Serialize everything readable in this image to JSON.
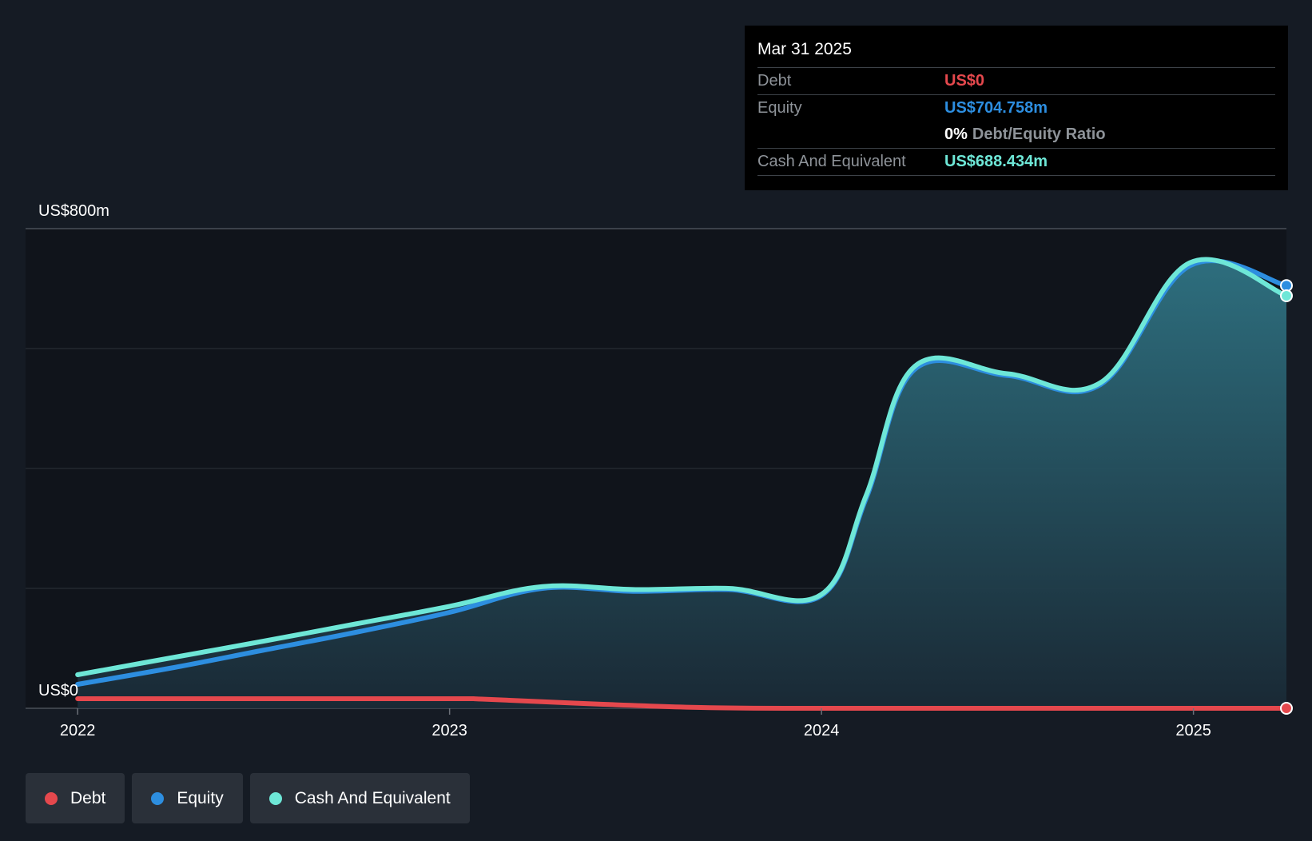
{
  "chart_data": {
    "type": "area",
    "y_axis": {
      "labels": [
        "US$800m",
        "US$0"
      ],
      "ylim": [
        0,
        800
      ],
      "gridlines": [
        0,
        200,
        400,
        600,
        800
      ]
    },
    "x_axis": {
      "ticks": [
        "2022",
        "2023",
        "2024",
        "2025"
      ],
      "xlim": [
        2021.86,
        2025.25
      ]
    },
    "series": [
      {
        "name": "Debt",
        "color": "#e5484d",
        "x": [
          2022.0,
          2022.5,
          2023.0,
          2023.1,
          2023.4,
          2023.7,
          2024.0,
          2024.5,
          2025.0,
          2025.25
        ],
        "values": [
          16,
          16,
          16,
          15,
          7,
          1,
          0,
          0,
          0,
          0
        ]
      },
      {
        "name": "Equity",
        "color": "#2d8ee0",
        "x": [
          2022.0,
          2022.25,
          2022.5,
          2022.75,
          2023.0,
          2023.25,
          2023.5,
          2023.75,
          2024.0,
          2024.12,
          2024.25,
          2024.5,
          2024.75,
          2024.99,
          2025.25
        ],
        "values": [
          40,
          67,
          97,
          127,
          160,
          200,
          195,
          198,
          188,
          350,
          565,
          555,
          540,
          738,
          705
        ]
      },
      {
        "name": "Cash And Equivalent",
        "color": "#6ee7d7",
        "x": [
          2022.0,
          2022.25,
          2022.5,
          2022.75,
          2023.0,
          2023.25,
          2023.5,
          2023.75,
          2024.0,
          2024.12,
          2024.25,
          2024.5,
          2024.75,
          2024.99,
          2025.25
        ],
        "values": [
          56,
          84,
          112,
          141,
          170,
          203,
          198,
          200,
          190,
          355,
          570,
          558,
          543,
          743,
          688
        ]
      }
    ]
  },
  "tooltip": {
    "date": "Mar 31 2025",
    "debt_label": "Debt",
    "debt_value": "US$0",
    "equity_label": "Equity",
    "equity_value": "US$704.758m",
    "ratio_pct": "0%",
    "ratio_label": "Debt/Equity Ratio",
    "cash_label": "Cash And Equivalent",
    "cash_value": "US$688.434m"
  },
  "legend": [
    {
      "label": "Debt",
      "color": "#e5484d"
    },
    {
      "label": "Equity",
      "color": "#2d8ee0"
    },
    {
      "label": "Cash And Equivalent",
      "color": "#6ee7d7"
    }
  ],
  "colors": {
    "background": "#151b24",
    "plot_background": "#10141b",
    "area_fill": "#2a6a7a"
  }
}
